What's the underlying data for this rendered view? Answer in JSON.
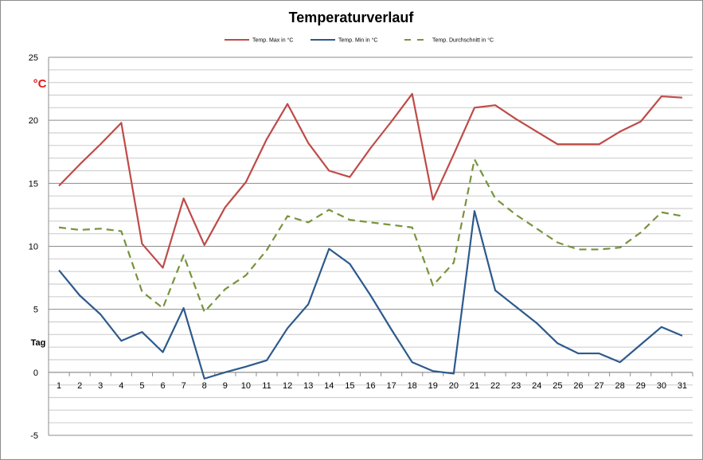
{
  "chart_data": {
    "type": "line",
    "title": "Temperaturverlauf",
    "ylabel": "°C",
    "xlabel": "Tag",
    "ylim": [
      -5,
      25
    ],
    "yticks": [
      -5,
      0,
      5,
      10,
      15,
      20,
      25
    ],
    "grid": true,
    "legend_position": "top",
    "x": [
      1,
      2,
      3,
      4,
      5,
      6,
      7,
      8,
      9,
      10,
      11,
      12,
      13,
      14,
      15,
      16,
      17,
      18,
      19,
      20,
      21,
      22,
      23,
      24,
      25,
      26,
      27,
      28,
      29,
      30,
      31
    ],
    "series": [
      {
        "name": "Temp. Max in °C",
        "color": "#be4b48",
        "dash": false,
        "values": [
          14.8,
          16.5,
          18.1,
          19.8,
          10.2,
          8.3,
          13.8,
          10.1,
          13.1,
          15.1,
          18.5,
          21.3,
          18.2,
          16.0,
          15.5,
          17.8,
          19.9,
          22.1,
          13.7,
          17.3,
          21.0,
          21.2,
          20.1,
          19.1,
          18.1,
          18.1,
          18.1,
          19.1,
          19.9,
          21.9,
          21.8
        ]
      },
      {
        "name": "Temp. Min in °C",
        "color": "#2c5a8c",
        "dash": false,
        "values": [
          8.1,
          6.1,
          4.6,
          2.5,
          3.2,
          1.6,
          5.1,
          -0.5,
          0.0,
          0.45,
          0.95,
          3.5,
          5.4,
          9.8,
          8.6,
          6.1,
          3.4,
          0.8,
          0.1,
          -0.1,
          12.8,
          6.5,
          5.2,
          3.9,
          2.3,
          1.5,
          1.5,
          0.8,
          2.2,
          3.6,
          2.9
        ]
      },
      {
        "name": "Temp. Durchschnitt in °C",
        "color": "#77933c",
        "dash": true,
        "values": [
          11.5,
          11.3,
          11.4,
          11.2,
          6.4,
          5.1,
          9.3,
          4.8,
          6.6,
          7.7,
          9.7,
          12.4,
          11.9,
          12.9,
          12.1,
          11.9,
          11.7,
          11.5,
          6.9,
          8.7,
          16.9,
          13.8,
          12.5,
          11.4,
          10.3,
          9.75,
          9.75,
          9.9,
          11.1,
          12.7,
          12.4
        ]
      }
    ]
  }
}
